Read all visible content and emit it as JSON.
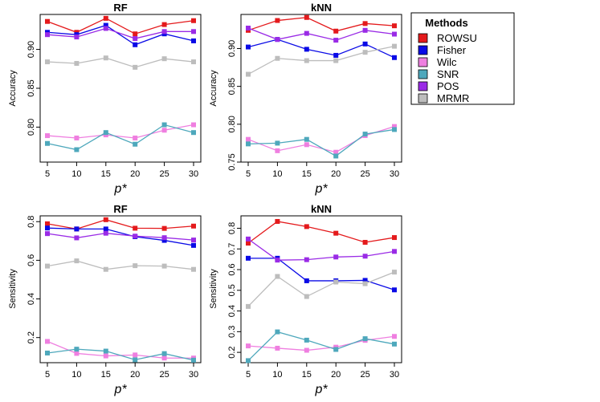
{
  "chart_data": [
    {
      "type": "line",
      "title": "RF",
      "xlabel": "p*",
      "ylabel": "Accuracy",
      "x": [
        5,
        10,
        15,
        20,
        25,
        30
      ],
      "ylim": [
        0.755,
        0.945
      ],
      "yticks": [
        0.8,
        0.85,
        0.9
      ],
      "ytick_labels": [
        "0.80",
        "0.85",
        "0.90"
      ],
      "series": [
        {
          "name": "ROWSU",
          "values": [
            0.936,
            0.922,
            0.94,
            0.92,
            0.932,
            0.937
          ]
        },
        {
          "name": "Fisher",
          "values": [
            0.922,
            0.919,
            0.931,
            0.906,
            0.92,
            0.911
          ]
        },
        {
          "name": "Wilc",
          "values": [
            0.789,
            0.786,
            0.79,
            0.786,
            0.796,
            0.803
          ]
        },
        {
          "name": "SNR",
          "values": [
            0.779,
            0.771,
            0.793,
            0.778,
            0.803,
            0.793
          ]
        },
        {
          "name": "POS",
          "values": [
            0.919,
            0.916,
            0.927,
            0.914,
            0.923,
            0.923
          ]
        },
        {
          "name": "MRMR",
          "values": [
            0.884,
            0.882,
            0.889,
            0.877,
            0.888,
            0.884
          ]
        }
      ]
    },
    {
      "type": "line",
      "title": "kNN",
      "xlabel": "p*",
      "ylabel": "Accuracy",
      "x": [
        5,
        10,
        15,
        20,
        25,
        30
      ],
      "ylim": [
        0.75,
        0.945
      ],
      "yticks": [
        0.75,
        0.8,
        0.85,
        0.9
      ],
      "ytick_labels": [
        "0.75",
        "0.80",
        "0.85",
        "0.90"
      ],
      "series": [
        {
          "name": "ROWSU",
          "values": [
            0.924,
            0.937,
            0.941,
            0.923,
            0.933,
            0.93
          ]
        },
        {
          "name": "Fisher",
          "values": [
            0.902,
            0.912,
            0.899,
            0.891,
            0.906,
            0.888
          ]
        },
        {
          "name": "Wilc",
          "values": [
            0.78,
            0.765,
            0.773,
            0.763,
            0.785,
            0.797
          ]
        },
        {
          "name": "SNR",
          "values": [
            0.774,
            0.775,
            0.78,
            0.758,
            0.787,
            0.793
          ]
        },
        {
          "name": "POS",
          "values": [
            0.927,
            0.912,
            0.92,
            0.911,
            0.924,
            0.919
          ]
        },
        {
          "name": "MRMR",
          "values": [
            0.866,
            0.887,
            0.884,
            0.884,
            0.895,
            0.903
          ]
        }
      ]
    },
    {
      "type": "line",
      "title": "RF",
      "xlabel": "p*",
      "ylabel": "Sensitivity",
      "x": [
        5,
        10,
        15,
        20,
        25,
        30
      ],
      "ylim": [
        0.07,
        0.83
      ],
      "yticks": [
        0.2,
        0.4,
        0.6,
        0.8
      ],
      "ytick_labels": [
        "0.2",
        "0.4",
        "0.6",
        "0.8"
      ],
      "series": [
        {
          "name": "ROWSU",
          "values": [
            0.789,
            0.762,
            0.81,
            0.766,
            0.765,
            0.777
          ]
        },
        {
          "name": "Fisher",
          "values": [
            0.767,
            0.762,
            0.762,
            0.722,
            0.703,
            0.677
          ]
        },
        {
          "name": "Wilc",
          "values": [
            0.18,
            0.118,
            0.105,
            0.11,
            0.094,
            0.094
          ]
        },
        {
          "name": "SNR",
          "values": [
            0.12,
            0.14,
            0.13,
            0.085,
            0.117,
            0.083
          ]
        },
        {
          "name": "POS",
          "values": [
            0.738,
            0.716,
            0.74,
            0.725,
            0.717,
            0.705
          ]
        },
        {
          "name": "MRMR",
          "values": [
            0.57,
            0.597,
            0.553,
            0.572,
            0.57,
            0.553
          ]
        }
      ]
    },
    {
      "type": "line",
      "title": "kNN",
      "xlabel": "p*",
      "ylabel": "Sensitivity",
      "x": [
        5,
        10,
        15,
        20,
        25,
        30
      ],
      "ylim": [
        0.15,
        0.86
      ],
      "yticks": [
        0.2,
        0.3,
        0.4,
        0.5,
        0.6,
        0.7,
        0.8
      ],
      "ytick_labels": [
        "0.2",
        "0.3",
        "0.4",
        "0.5",
        "0.6",
        "0.7",
        "0.8"
      ],
      "series": [
        {
          "name": "ROWSU",
          "values": [
            0.728,
            0.833,
            0.808,
            0.776,
            0.732,
            0.755
          ]
        },
        {
          "name": "Fisher",
          "values": [
            0.655,
            0.655,
            0.546,
            0.546,
            0.548,
            0.502
          ]
        },
        {
          "name": "Wilc",
          "values": [
            0.231,
            0.22,
            0.21,
            0.225,
            0.258,
            0.277
          ]
        },
        {
          "name": "SNR",
          "values": [
            0.16,
            0.299,
            0.259,
            0.214,
            0.266,
            0.24
          ]
        },
        {
          "name": "POS",
          "values": [
            0.748,
            0.646,
            0.648,
            0.661,
            0.665,
            0.688
          ]
        },
        {
          "name": "MRMR",
          "values": [
            0.422,
            0.567,
            0.47,
            0.54,
            0.532,
            0.588
          ]
        }
      ]
    }
  ],
  "legend": {
    "title": "Methods",
    "placement": "right",
    "items": [
      {
        "name": "ROWSU",
        "color": "#e41a1c"
      },
      {
        "name": "Fisher",
        "color": "#0a0ae6"
      },
      {
        "name": "Wilc",
        "color": "#ef7fe0"
      },
      {
        "name": "SNR",
        "color": "#4ea8bc"
      },
      {
        "name": "POS",
        "color": "#9a2be6"
      },
      {
        "name": "MRMR",
        "color": "#bdbdbd"
      }
    ]
  }
}
